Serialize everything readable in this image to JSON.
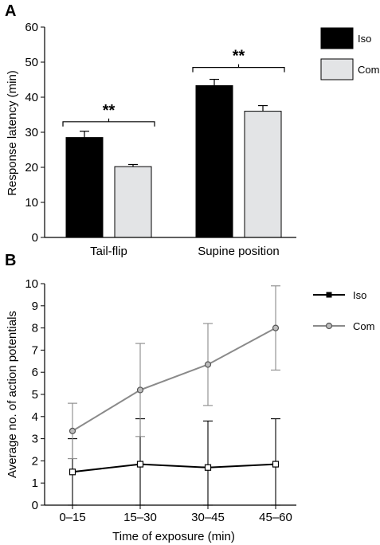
{
  "chart_data": [
    {
      "panel": "A",
      "type": "bar",
      "ylabel": "Response latency (min)",
      "ylim": [
        0,
        60
      ],
      "yticks": [
        0,
        10,
        20,
        30,
        40,
        50,
        60
      ],
      "categories": [
        "Tail-flip",
        "Supine position"
      ],
      "series": [
        {
          "name": "Iso",
          "color": "#000000",
          "values": [
            28.5,
            43.3
          ],
          "errors": [
            1.8,
            1.8
          ]
        },
        {
          "name": "Com",
          "color": "#e3e4e6",
          "values": [
            20.2,
            36.0
          ],
          "errors": [
            0.6,
            1.6
          ]
        }
      ],
      "significance": [
        {
          "category": "Tail-flip",
          "label": "**"
        },
        {
          "category": "Supine position",
          "label": "**"
        }
      ],
      "legend_position": "top-right"
    },
    {
      "panel": "B",
      "type": "line",
      "xlabel": "Time of exposure (min)",
      "ylabel": "Average no. of action potentials",
      "ylim": [
        0,
        10
      ],
      "yticks": [
        0,
        1,
        2,
        3,
        4,
        5,
        6,
        7,
        8,
        9,
        10
      ],
      "categories": [
        "0–15",
        "15–30",
        "30–45",
        "45–60"
      ],
      "series": [
        {
          "name": "Iso",
          "color": "#000000",
          "marker": "square",
          "values": [
            1.5,
            1.85,
            1.7,
            1.85
          ],
          "err_low": [
            0.0,
            0.0,
            0.0,
            0.0
          ],
          "err_high": [
            3.0,
            3.9,
            3.8,
            3.9
          ]
        },
        {
          "name": "Com",
          "color": "#8a8a8a",
          "marker": "circle",
          "values": [
            3.35,
            5.2,
            6.35,
            8.0
          ],
          "err_low": [
            2.1,
            3.1,
            4.5,
            6.1
          ],
          "err_high": [
            4.6,
            7.3,
            8.2,
            9.9
          ]
        }
      ],
      "legend_position": "top-right"
    }
  ]
}
